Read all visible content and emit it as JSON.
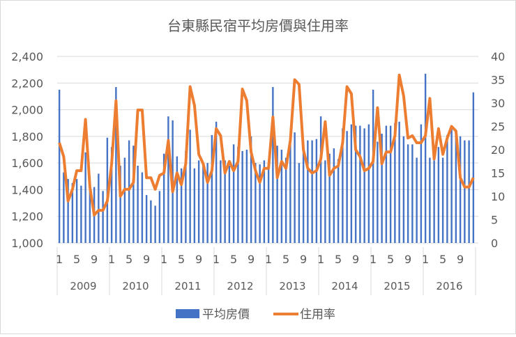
{
  "chart_data": {
    "type": "bar+line",
    "title": "台東縣民宿平均房價與住用率",
    "years": [
      "2009",
      "2010",
      "2011",
      "2012",
      "2013",
      "2014",
      "2015",
      "2016"
    ],
    "month_tick_labels": [
      "1",
      "5",
      "9"
    ],
    "y_left": {
      "range": [
        1000,
        2400
      ],
      "ticks": [
        "1,000",
        "1,200",
        "1,400",
        "1,600",
        "1,800",
        "2,000",
        "2,200",
        "2,400"
      ]
    },
    "y_right": {
      "range": [
        0,
        40
      ],
      "ticks": [
        "0",
        "5",
        "10",
        "15",
        "20",
        "25",
        "30",
        "35",
        "40"
      ]
    },
    "grid": true,
    "legend_position": "bottom",
    "series": [
      {
        "name": "平均房價",
        "type": "bar",
        "axis": "left",
        "color": "#4472C4",
        "values": [
          2150,
          1530,
          1480,
          1450,
          1480,
          1430,
          1680,
          1500,
          1420,
          1520,
          1390,
          1790,
          1720,
          2170,
          1580,
          1640,
          1770,
          1730,
          1580,
          1530,
          1360,
          1320,
          1280,
          1390,
          1670,
          1950,
          1920,
          1650,
          1560,
          1690,
          1850,
          1560,
          1620,
          1580,
          1600,
          1810,
          1910,
          1620,
          1620,
          1580,
          1740,
          1720,
          1690,
          1700,
          1800,
          1600,
          1590,
          1620,
          1600,
          2170,
          1730,
          1700,
          1640,
          1800,
          1830,
          1600,
          1760,
          1770,
          1770,
          1780,
          1950,
          1620,
          1670,
          1710,
          1630,
          1860,
          1840,
          1890,
          1880,
          1880,
          1860,
          1890,
          2150,
          1760,
          1820,
          1880,
          1880,
          1900,
          1910,
          1800,
          1740,
          1740,
          1640,
          1890,
          2270,
          1640,
          1620,
          1720,
          1640,
          1810,
          1860,
          1850,
          1800,
          1770,
          1770,
          2130
        ]
      },
      {
        "name": "住用率",
        "type": "line",
        "axis": "right",
        "color": "#ED7D31",
        "values": [
          21.5,
          18.5,
          9,
          11.5,
          15.5,
          15.5,
          26.5,
          12,
          6,
          7,
          7,
          9,
          17,
          30.5,
          10,
          11.5,
          11.5,
          13,
          28.5,
          28.5,
          14,
          14,
          11.5,
          14.5,
          15,
          22,
          11,
          15,
          12.5,
          17,
          33.5,
          29.5,
          19,
          17,
          13,
          15.5,
          24.5,
          23,
          15,
          17.5,
          15.5,
          17.5,
          33,
          30.5,
          19.5,
          15.5,
          13,
          16,
          16,
          27,
          14,
          17.5,
          16,
          22,
          35,
          34,
          20,
          16,
          15,
          15.5,
          18,
          26,
          14.5,
          16,
          16.5,
          21.5,
          33.5,
          32,
          20,
          18.5,
          15.5,
          16,
          17.5,
          29,
          17,
          19.5,
          19.5,
          23,
          36,
          31.5,
          22.5,
          23,
          21.5,
          21.5,
          23,
          31,
          18,
          24.5,
          19,
          22.5,
          25,
          24,
          14,
          12,
          12,
          14
        ]
      }
    ]
  }
}
